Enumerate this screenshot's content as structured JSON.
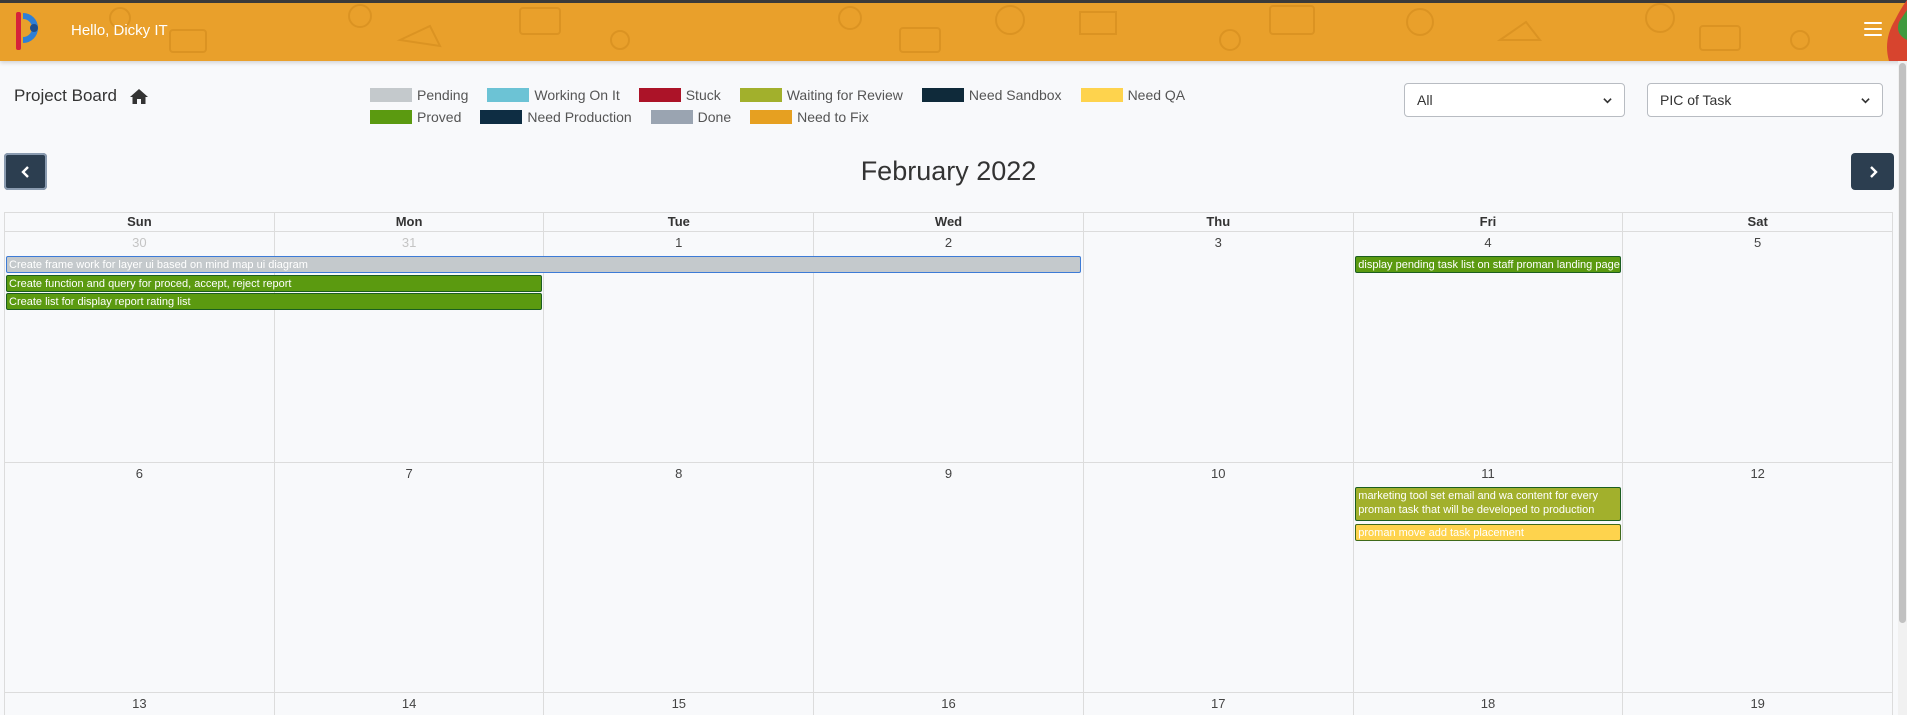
{
  "header": {
    "greeting": "Hello, Dicky IT",
    "bg_color": "#e9a02b"
  },
  "toolbar": {
    "board_title": "Project Board",
    "filter_select": {
      "value": "All"
    },
    "pic_select": {
      "value": "PIC of Task"
    }
  },
  "legend": {
    "rows": [
      [
        {
          "label": "Pending",
          "color": "#c4c9cc"
        },
        {
          "label": "Working On It",
          "color": "#6cc3d5"
        },
        {
          "label": "Stuck",
          "color": "#ac1328"
        },
        {
          "label": "Waiting for Review",
          "color": "#a2b02c"
        },
        {
          "label": "Need Sandbox",
          "color": "#0f2a3a"
        },
        {
          "label": "Need QA",
          "color": "#fed34d"
        }
      ],
      [
        {
          "label": "Proved",
          "color": "#5b9a10"
        },
        {
          "label": "Need Production",
          "color": "#0e2d43"
        },
        {
          "label": "Done",
          "color": "#9aa4b1"
        },
        {
          "label": "Need to Fix",
          "color": "#e6a021"
        }
      ]
    ]
  },
  "calendar": {
    "month_title": "February 2022",
    "weekdays": [
      "Sun",
      "Mon",
      "Tue",
      "Wed",
      "Thu",
      "Fri",
      "Sat"
    ],
    "weeks": [
      {
        "days": [
          {
            "n": "30",
            "other": true
          },
          {
            "n": "31",
            "other": true
          },
          {
            "n": "1"
          },
          {
            "n": "2"
          },
          {
            "n": "3"
          },
          {
            "n": "4"
          },
          {
            "n": "5"
          }
        ],
        "events": [
          {
            "title": "Create frame work for layer ui based on mind map ui diagram",
            "status": "Pending",
            "start": 0,
            "span": 4,
            "row": 0
          },
          {
            "title": "Create function and query for proced, accept, reject report",
            "status": "Proved",
            "start": 0,
            "span": 2,
            "row": 1
          },
          {
            "title": "Create list for display report rating list",
            "status": "Proved",
            "start": 0,
            "span": 2,
            "row": 2
          },
          {
            "title": "display pending task list on staff proman landing page",
            "status": "Proved",
            "start": 5,
            "span": 1,
            "row": 0
          }
        ]
      },
      {
        "days": [
          {
            "n": "6"
          },
          {
            "n": "7"
          },
          {
            "n": "8"
          },
          {
            "n": "9"
          },
          {
            "n": "10"
          },
          {
            "n": "11"
          },
          {
            "n": "12"
          }
        ],
        "events": [
          {
            "title": "marketing tool set email and wa content for every proman task that will be developed to production",
            "status": "Waiting for Review",
            "start": 5,
            "span": 1,
            "row": 0,
            "lines": 2
          },
          {
            "title": "proman move add task placement",
            "status": "Need QA",
            "start": 5,
            "span": 1,
            "row": 2
          }
        ]
      },
      {
        "days": [
          {
            "n": "13"
          },
          {
            "n": "14"
          },
          {
            "n": "15"
          },
          {
            "n": "16"
          },
          {
            "n": "17"
          },
          {
            "n": "18"
          },
          {
            "n": "19"
          }
        ],
        "events": []
      }
    ]
  },
  "icons": {
    "home": "home-icon",
    "prev": "chevron-left-icon",
    "next": "chevron-right-icon",
    "menu": "hamburger-menu-icon"
  }
}
